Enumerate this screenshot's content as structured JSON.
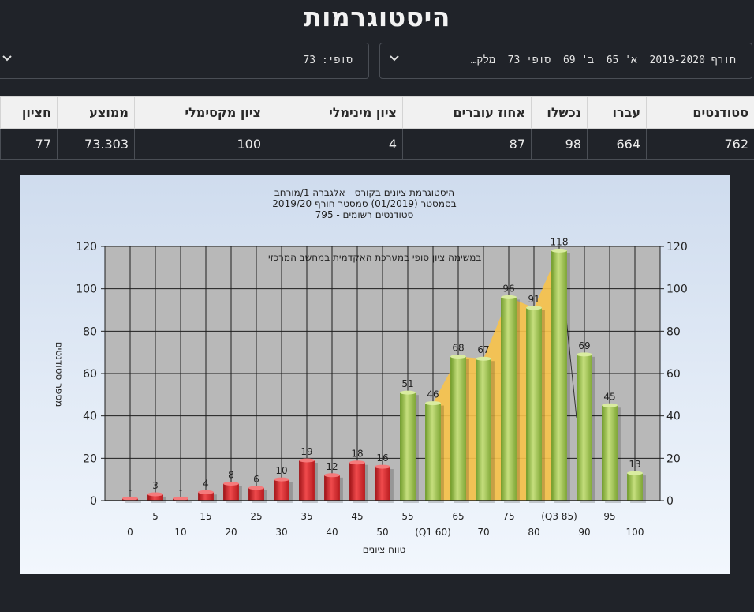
{
  "page_title": "היסטוגרמות",
  "semester_select": {
    "value": "חורף 2019-2020  א' 65  ב' 69  סופי 73  מלק…"
  },
  "final_select": {
    "value": "סופי: 73"
  },
  "stats_table": {
    "headers": [
      "סטודנטים",
      "עברו",
      "נכשלו",
      "אחוז עוברים",
      "ציון מינימלי",
      "ציון מקסימלי",
      "ממוצע",
      "חציון"
    ],
    "values": [
      "762",
      "664",
      "98",
      "87",
      "4",
      "100",
      "73.303",
      "77"
    ]
  },
  "colors": {
    "fail_bar": "#e0262b",
    "pass_bar": "#98c04a",
    "quartile_area": "#f8c34a",
    "plot_bg": "#b8b8b8"
  },
  "chart_data": {
    "type": "bar",
    "title_lines": [
      "היסטוגרמת ציונים בקורס - אלגברה 1/מורחב",
      "בסמסטר  (01/2019)  סמסטר חורף 2019/20",
      "סטודנטים רשומים - 795"
    ],
    "annotation": "במשימה  ציון סופי במערכת האקדמית במחשב המרכזי",
    "xlabel": "טווח ציונים",
    "ylabel": "מספר סטודנטים",
    "ylim": [
      0,
      120
    ],
    "yticks": [
      0,
      20,
      40,
      60,
      80,
      100,
      120
    ],
    "categories": [
      0,
      5,
      10,
      15,
      20,
      25,
      30,
      35,
      40,
      45,
      50,
      55,
      60,
      65,
      70,
      75,
      80,
      85,
      90,
      95,
      100
    ],
    "x_tick_labels": [
      "0",
      "5",
      "10",
      "15",
      "20",
      "25",
      "30",
      "35",
      "40",
      "45",
      "50",
      "55",
      "(Q1 60)",
      "65",
      "70",
      "75",
      "80",
      "(Q3 85)",
      "90",
      "95",
      "100"
    ],
    "values": [
      1,
      3,
      1,
      4,
      8,
      6,
      10,
      19,
      12,
      18,
      16,
      51,
      46,
      68,
      67,
      96,
      91,
      118,
      69,
      45,
      13
    ],
    "value_labels": [
      "-",
      "3",
      "-",
      "4",
      "8",
      "6",
      "10",
      "19",
      "12",
      "18",
      "16",
      "51",
      "46",
      "68",
      "67",
      "96",
      "91",
      "118",
      "69",
      "45",
      "13"
    ],
    "pass_threshold": 55,
    "quartile_range": [
      60,
      85
    ],
    "legend": "none",
    "grid": true
  }
}
